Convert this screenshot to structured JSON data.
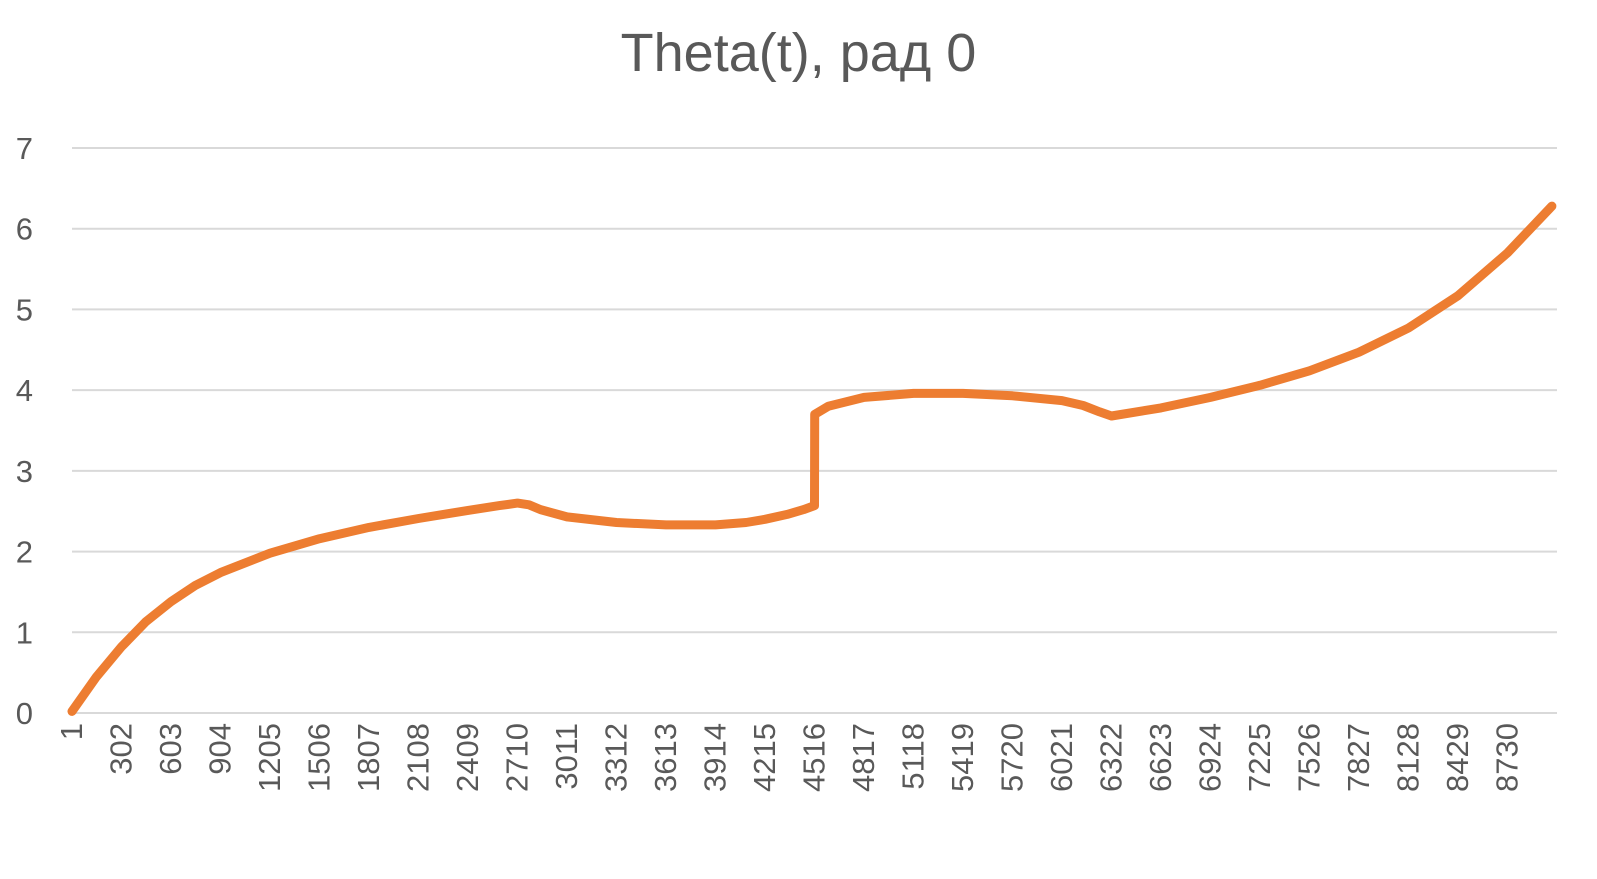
{
  "chart_data": {
    "type": "line",
    "title": "Theta(t), рад 0",
    "xlabel": "",
    "ylabel": "",
    "ylim": [
      0,
      7
    ],
    "y_ticks": [
      "0",
      "1",
      "2",
      "3",
      "4",
      "5",
      "6",
      "7"
    ],
    "x_range": [
      1,
      9031
    ],
    "x_tick_labels": [
      "1",
      "302",
      "603",
      "904",
      "1205",
      "1506",
      "1807",
      "2108",
      "2409",
      "2710",
      "3011",
      "3312",
      "3613",
      "3914",
      "4215",
      "4516",
      "4817",
      "5118",
      "5419",
      "5720",
      "6021",
      "6322",
      "6623",
      "6924",
      "7225",
      "7526",
      "7827",
      "8128",
      "8429",
      "8730"
    ],
    "grid": true,
    "legend": "none",
    "series": [
      {
        "name": "Theta(t)",
        "color": "#ED7D31",
        "x": [
          1,
          150,
          302,
          450,
          603,
          750,
          904,
          1205,
          1506,
          1807,
          2108,
          2409,
          2600,
          2710,
          2780,
          2850,
          3011,
          3312,
          3613,
          3914,
          4100,
          4215,
          4350,
          4450,
          4516,
          4517,
          4600,
          4817,
          5118,
          5419,
          5720,
          6021,
          6150,
          6250,
          6322,
          6623,
          6924,
          7225,
          7526,
          7827,
          8128,
          8429,
          8730,
          9000
        ],
        "values": [
          0.02,
          0.45,
          0.82,
          1.13,
          1.38,
          1.58,
          1.74,
          1.98,
          2.16,
          2.3,
          2.41,
          2.51,
          2.57,
          2.6,
          2.58,
          2.52,
          2.43,
          2.36,
          2.33,
          2.33,
          2.36,
          2.4,
          2.46,
          2.52,
          2.57,
          3.7,
          3.8,
          3.91,
          3.96,
          3.96,
          3.93,
          3.87,
          3.81,
          3.73,
          3.68,
          3.78,
          3.91,
          4.06,
          4.24,
          4.47,
          4.77,
          5.17,
          5.7,
          6.28
        ]
      }
    ]
  }
}
